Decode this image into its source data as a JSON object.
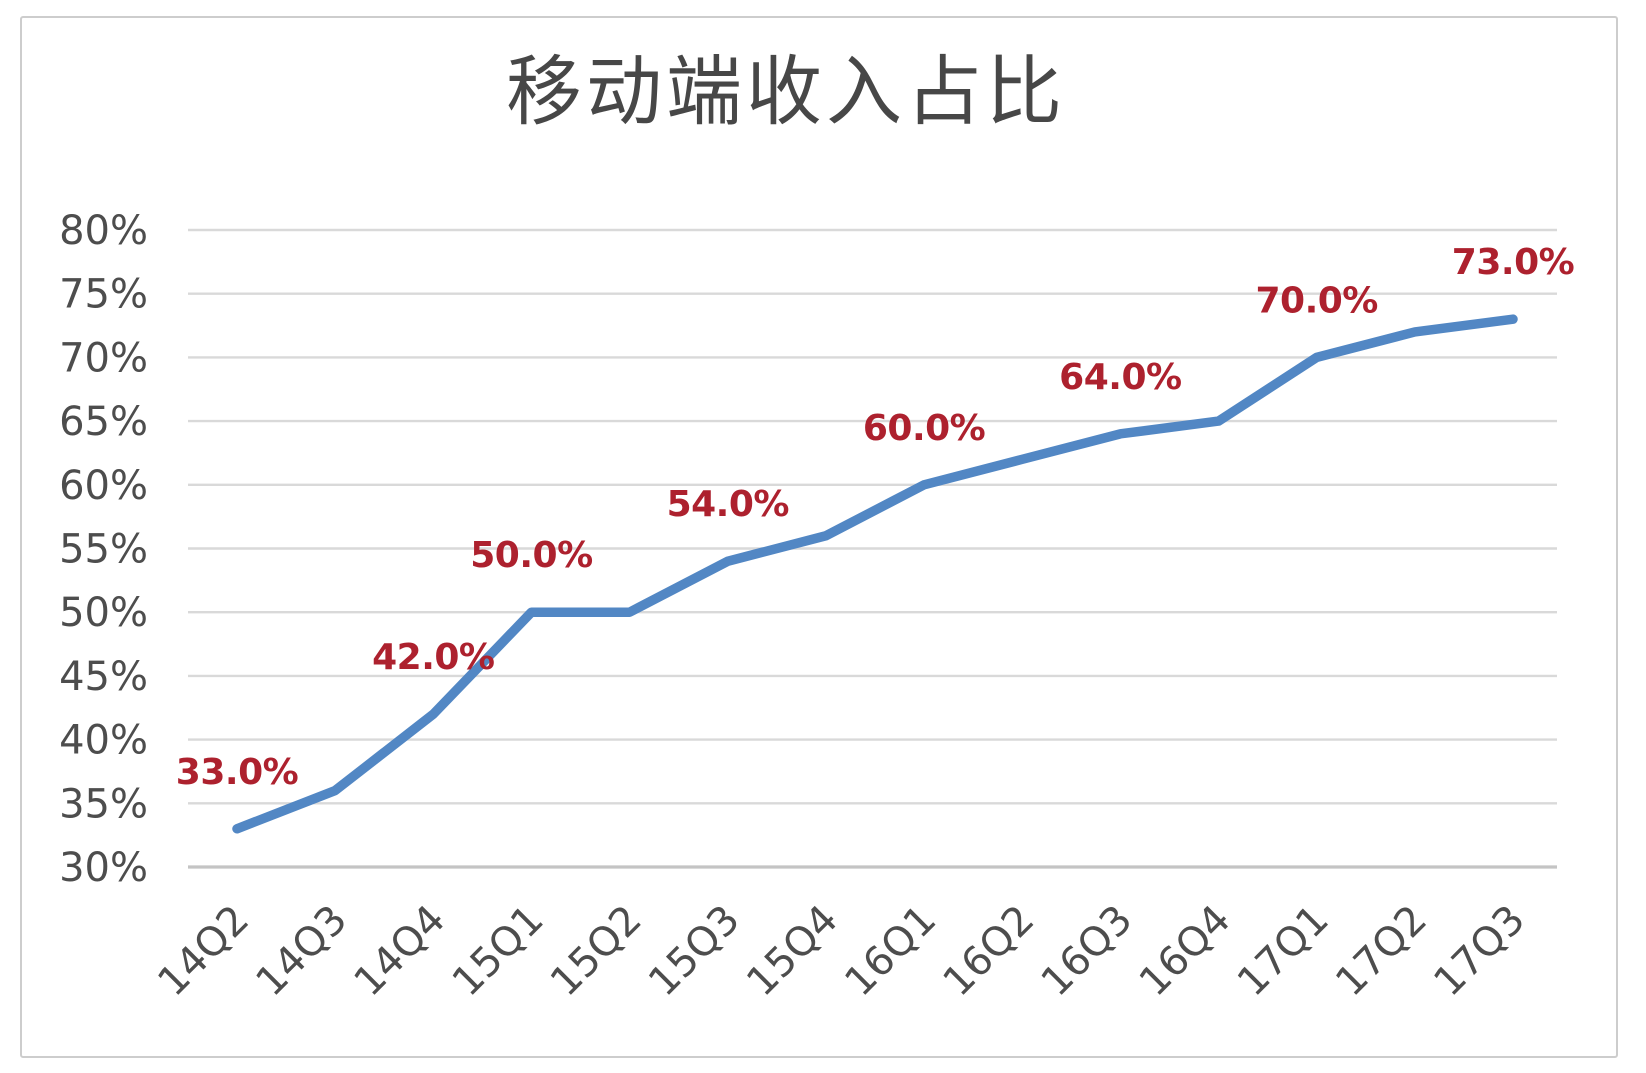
{
  "page": {
    "background_color": "#ffffff",
    "frame_color": "#cdcdcd"
  },
  "chart_data": {
    "type": "line",
    "title": "移动端收入占比",
    "categories": [
      "14Q2",
      "14Q3",
      "14Q4",
      "15Q1",
      "15Q2",
      "15Q3",
      "15Q4",
      "16Q1",
      "16Q2",
      "16Q3",
      "16Q4",
      "17Q1",
      "17Q2",
      "17Q3"
    ],
    "series": [
      {
        "name": "移动端收入占比",
        "values": [
          33,
          36,
          42,
          50,
          50,
          54,
          56,
          60,
          62,
          64,
          65,
          70,
          72,
          73
        ]
      }
    ],
    "data_labels": [
      "33.0%",
      null,
      "42.0%",
      "50.0%",
      null,
      "54.0%",
      null,
      "60.0%",
      null,
      "64.0%",
      null,
      "70.0%",
      null,
      "73.0%"
    ],
    "ylim": [
      30,
      80
    ],
    "y_ticks": [
      {
        "value": 30,
        "label": "30%"
      },
      {
        "value": 35,
        "label": "35%"
      },
      {
        "value": 40,
        "label": "40%"
      },
      {
        "value": 45,
        "label": "45%"
      },
      {
        "value": 50,
        "label": "50%"
      },
      {
        "value": 55,
        "label": "55%"
      },
      {
        "value": 60,
        "label": "60%"
      },
      {
        "value": 65,
        "label": "65%"
      },
      {
        "value": 70,
        "label": "70%"
      },
      {
        "value": 75,
        "label": "75%"
      },
      {
        "value": 80,
        "label": "80%"
      }
    ],
    "x_label_rotation": -45,
    "grid": true,
    "legend": false,
    "colors": {
      "line": "#5287C4",
      "data_label": "#AD212E",
      "title_text": "#474747",
      "axis_text": "#4D4D4D",
      "gridline": "#D9D9D9",
      "axis_line": "#C4C4C4"
    }
  }
}
